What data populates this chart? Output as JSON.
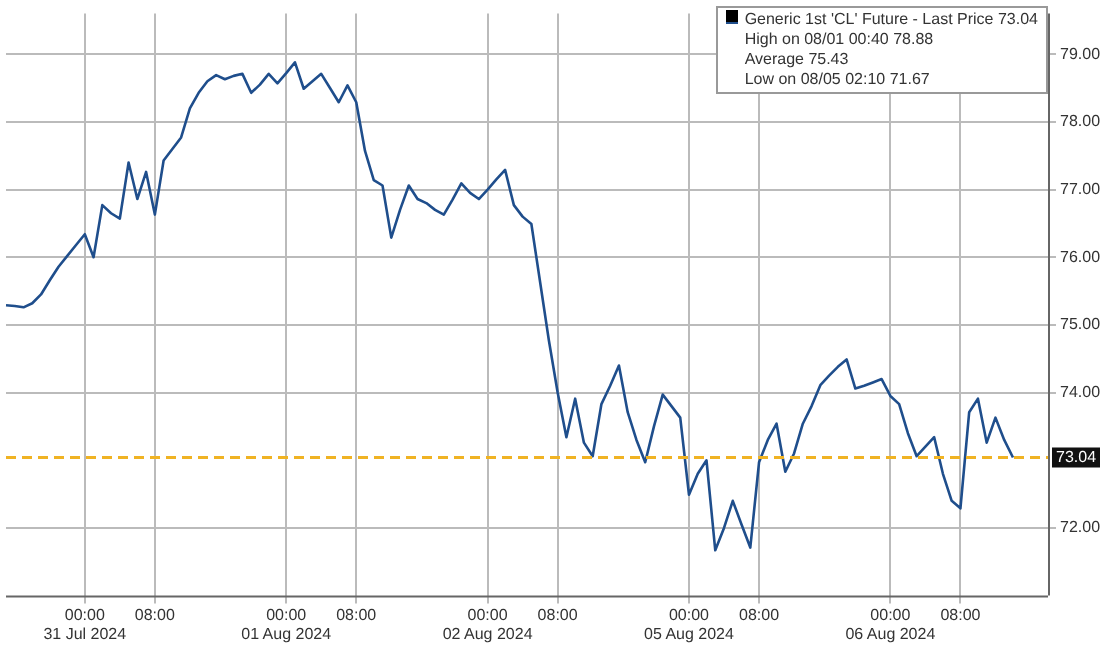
{
  "chart_data": {
    "type": "line",
    "categories": [
      null,
      null,
      null,
      null,
      null,
      null,
      null,
      null,
      null,
      "00:00\n31 Jul 2024",
      null,
      null,
      null,
      null,
      null,
      null,
      null,
      "08:00",
      null,
      null,
      null,
      null,
      null,
      null,
      null,
      null,
      null,
      null,
      null,
      null,
      null,
      null,
      "00:00\n01 Aug 2024",
      null,
      null,
      null,
      null,
      null,
      null,
      null,
      "08:00",
      null,
      null,
      null,
      null,
      null,
      null,
      null,
      null,
      null,
      null,
      null,
      null,
      null,
      null,
      "00:00\n02 Aug 2024",
      null,
      null,
      null,
      null,
      null,
      null,
      null,
      "08:00",
      null,
      null,
      null,
      null,
      null,
      null,
      null,
      null,
      null,
      null,
      null,
      null,
      null,
      null,
      "00:00\n05 Aug 2024",
      null,
      null,
      null,
      null,
      null,
      null,
      null,
      "08:00",
      null,
      null,
      null,
      null,
      null,
      null,
      null,
      null,
      null,
      null,
      null,
      null,
      null,
      null,
      "00:00\n06 Aug 2024",
      null,
      null,
      null,
      null,
      null,
      null,
      null,
      "08:00",
      null,
      null,
      null,
      null,
      null,
      null,
      null,
      null,
      null,
      null
    ],
    "series": [
      {
        "name": "Generic 1st 'CL' Future - Last Price 73.04",
        "color": "#1f4e8c",
        "values": [
          75.29,
          75.28,
          75.26,
          75.32,
          75.45,
          75.66,
          75.86,
          76.02,
          76.18,
          76.34,
          76.0,
          76.77,
          76.65,
          76.57,
          77.4,
          76.86,
          77.26,
          76.63,
          77.43,
          77.6,
          77.77,
          78.2,
          78.43,
          78.6,
          78.69,
          78.63,
          78.68,
          78.71,
          78.43,
          78.55,
          78.71,
          78.57,
          78.72,
          78.88,
          78.49,
          78.6,
          78.71,
          78.5,
          78.29,
          78.54,
          78.29,
          77.57,
          77.14,
          77.06,
          76.29,
          76.7,
          77.06,
          76.86,
          76.8,
          76.7,
          76.63,
          76.85,
          77.09,
          76.95,
          76.86,
          77.0,
          77.15,
          77.29,
          76.77,
          76.6,
          76.49,
          75.63,
          74.77,
          74.0,
          73.34,
          73.91,
          73.26,
          73.06,
          73.83,
          74.1,
          74.4,
          73.71,
          73.3,
          72.97,
          73.5,
          73.97,
          73.8,
          73.63,
          72.49,
          72.8,
          73.0,
          71.67,
          72.0,
          72.4,
          72.05,
          71.71,
          72.97,
          73.3,
          73.54,
          72.83,
          73.1,
          73.54,
          73.8,
          74.11,
          74.25,
          74.38,
          74.49,
          74.06,
          74.1,
          74.15,
          74.2,
          73.95,
          73.83,
          73.4,
          73.06,
          73.2,
          73.34,
          72.8,
          72.4,
          72.29,
          73.71,
          73.91,
          73.26,
          73.63,
          73.3,
          73.04,
          null,
          null,
          null,
          null
        ]
      }
    ],
    "ylim": [
      71,
      79.6
    ],
    "yticks": [
      {
        "value": 72,
        "label": "72.00"
      },
      {
        "value": 74,
        "label": "74.00"
      },
      {
        "value": 75,
        "label": "75.00"
      },
      {
        "value": 76,
        "label": "76.00"
      },
      {
        "value": 77,
        "label": "77.00"
      },
      {
        "value": 78,
        "label": "78.00"
      },
      {
        "value": 79,
        "label": "79.00"
      }
    ],
    "ref_lines": [
      {
        "axis": "y",
        "value": 73.04,
        "label": "73.04",
        "color": "#f0b323",
        "line_style": "dashed"
      }
    ],
    "annotations": [
      "High on 08/01 00:40 78.88",
      "Average 75.43",
      "Low on 08/05 02:10 71.67"
    ],
    "grid": true,
    "legend": "top right",
    "marker": "none",
    "line_style": "solid"
  }
}
